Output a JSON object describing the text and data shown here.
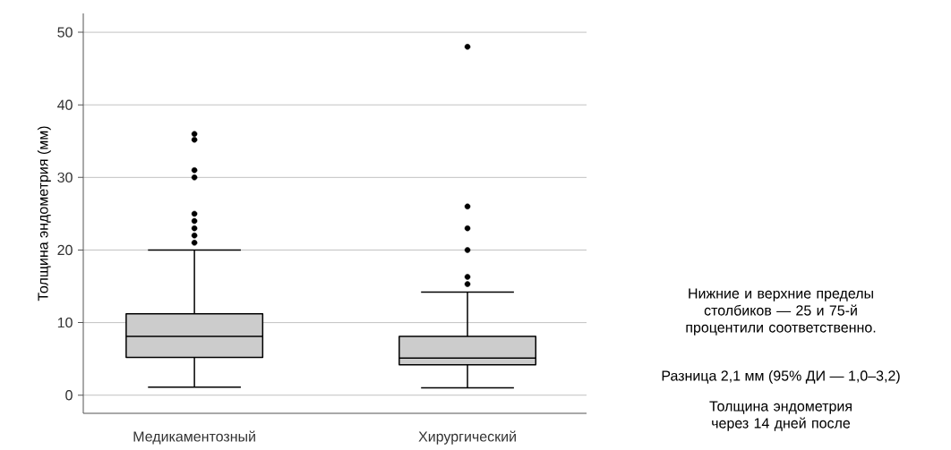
{
  "chart_data": {
    "type": "box",
    "ylabel": "Толщина эндометрия (мм)",
    "categories": [
      "Медикаментозный",
      "Хирургический"
    ],
    "boxes": [
      {
        "low": 1.1,
        "q1": 5.2,
        "median": 8.1,
        "q3": 11.2,
        "high": 20,
        "outliers": [
          36,
          35.2,
          31,
          30,
          25,
          24,
          23,
          22,
          21
        ]
      },
      {
        "low": 1,
        "q1": 4.2,
        "median": 5.1,
        "q3": 8.1,
        "high": 14.2,
        "outliers": [
          48,
          26,
          23,
          20,
          16.3,
          15.3
        ]
      }
    ],
    "color": "#cccccc",
    "ylim": [
      -2.5,
      52.6
    ],
    "yticks": [
      0,
      10,
      20,
      30,
      40,
      50
    ],
    "grid": "y",
    "marker": "circle",
    "annotations": [
      "Нижние и верхние пределы столбиков — 25 и 75-й процентили соответственно.",
      "Разница 2,1 мм (95% ДИ — 1,0–3,2)",
      "Толщина эндометрия через 14 дней после"
    ]
  }
}
